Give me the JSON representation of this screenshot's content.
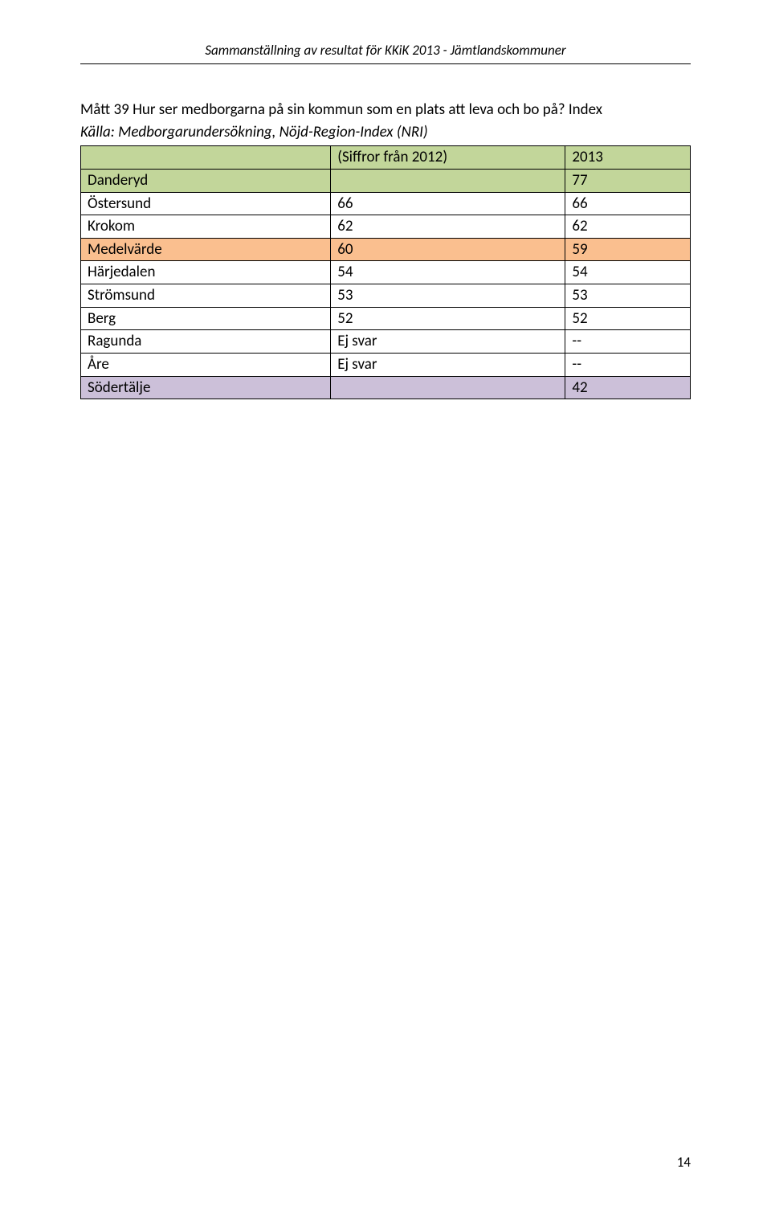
{
  "header": {
    "running_head": "Sammanställning av resultat för KKiK 2013 - Jämtlandskommuner"
  },
  "question": {
    "title": "Mått 39 Hur ser medborgarna på sin kommun som en plats att leva och bo på? Index",
    "source": "Källa: Medborgarundersökning, Nöjd-Region-Index (NRI)"
  },
  "table": {
    "columns": {
      "name": "",
      "col_2012": "(Siffror från 2012)",
      "col_2013": "2013"
    },
    "rows": [
      {
        "name": "Danderyd",
        "v2012": "",
        "v2013": "77",
        "style": "green"
      },
      {
        "name": "Östersund",
        "v2012": "66",
        "v2013": "66",
        "style": "plain"
      },
      {
        "name": "Krokom",
        "v2012": "62",
        "v2013": "62",
        "style": "plain"
      },
      {
        "name": "Medelvärde",
        "v2012": "60",
        "v2013": "59",
        "style": "peach"
      },
      {
        "name": "Härjedalen",
        "v2012": "54",
        "v2013": "54",
        "style": "plain"
      },
      {
        "name": "Strömsund",
        "v2012": "53",
        "v2013": "53",
        "style": "plain"
      },
      {
        "name": "Berg",
        "v2012": "52",
        "v2013": "52",
        "style": "plain"
      },
      {
        "name": "Ragunda",
        "v2012": "Ej svar",
        "v2013": "--",
        "style": "plain"
      },
      {
        "name": "Åre",
        "v2012": "Ej svar",
        "v2013": "--",
        "style": "plain"
      },
      {
        "name": "Södertälje",
        "v2012": "",
        "v2013": "42",
        "style": "lilac"
      }
    ],
    "row_colors": {
      "green": "#c2d69a",
      "peach": "#fabf8f",
      "lilac": "#ccc0d9",
      "plain": "#ffffff"
    },
    "border_color": "#000000",
    "font_size_pt": 14
  },
  "footer": {
    "page_number": "14"
  }
}
